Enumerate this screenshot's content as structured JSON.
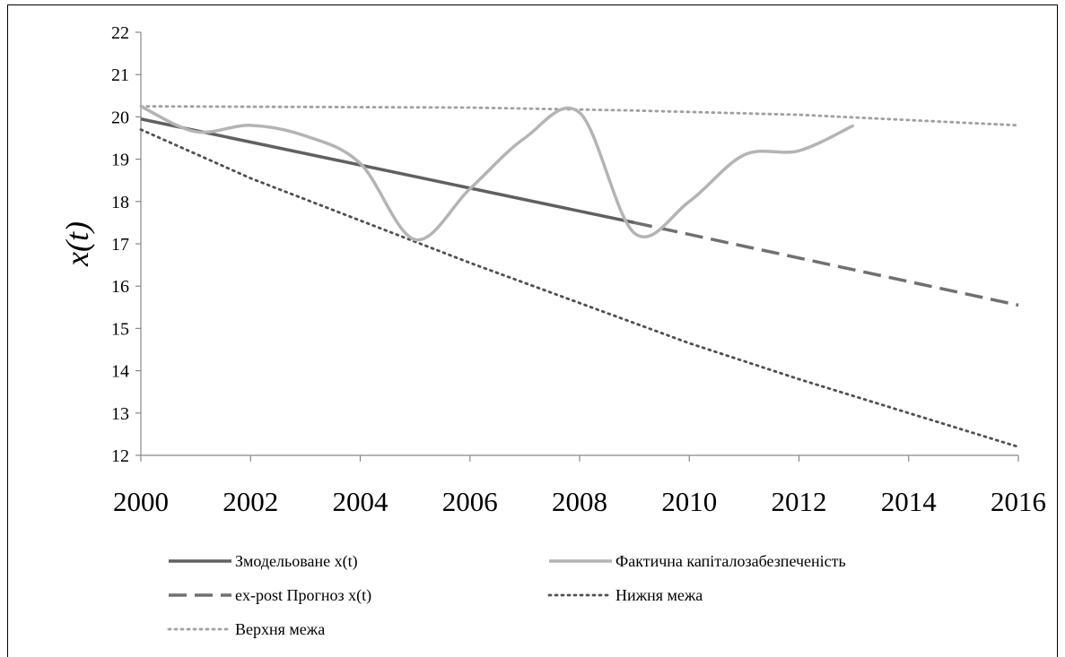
{
  "chart_data": {
    "type": "line",
    "title": "",
    "xlabel": "",
    "ylabel": "x(t)",
    "xlim": [
      2000,
      2016
    ],
    "ylim": [
      12,
      22
    ],
    "x_ticks": [
      2000,
      2002,
      2004,
      2006,
      2008,
      2010,
      2012,
      2014,
      2016
    ],
    "y_ticks": [
      12,
      13,
      14,
      15,
      16,
      17,
      18,
      19,
      20,
      21,
      22
    ],
    "legend_position": "bottom",
    "grid": false,
    "series": [
      {
        "name": "Змодельоване x(t)",
        "style": "solid",
        "color": "#606060",
        "width": 3.5,
        "x": [
          2000,
          2009
        ],
        "y": [
          19.95,
          17.5
        ]
      },
      {
        "name": "Фактична капіталозабезпеченість",
        "style": "solid",
        "color": "#b4b4b4",
        "width": 3.5,
        "smooth": true,
        "x": [
          2000,
          2001,
          2002,
          2003,
          2004,
          2005,
          2006,
          2007,
          2008,
          2009,
          2010,
          2011,
          2012,
          2013
        ],
        "y": [
          20.25,
          19.65,
          19.8,
          19.55,
          18.9,
          17.1,
          18.3,
          19.5,
          20.1,
          17.25,
          18.0,
          19.1,
          19.2,
          19.8
        ]
      },
      {
        "name": "ex-post Прогноз x(t)",
        "style": "dashed",
        "color": "#707070",
        "width": 3.5,
        "x": [
          2009,
          2016
        ],
        "y": [
          17.5,
          15.55
        ]
      },
      {
        "name": "Нижня межа",
        "style": "dotted",
        "color": "#505050",
        "width": 2.8,
        "x": [
          2000,
          2002,
          2004,
          2006,
          2008,
          2010,
          2012,
          2014,
          2016
        ],
        "y": [
          19.7,
          18.55,
          17.55,
          16.55,
          15.6,
          14.65,
          13.8,
          13.0,
          12.2
        ]
      },
      {
        "name": "Верхня межа",
        "style": "dotted",
        "color": "#a0a0a0",
        "width": 2.8,
        "x": [
          2000,
          2006,
          2009,
          2012,
          2016
        ],
        "y": [
          20.25,
          20.22,
          20.15,
          20.05,
          19.8
        ]
      }
    ]
  }
}
